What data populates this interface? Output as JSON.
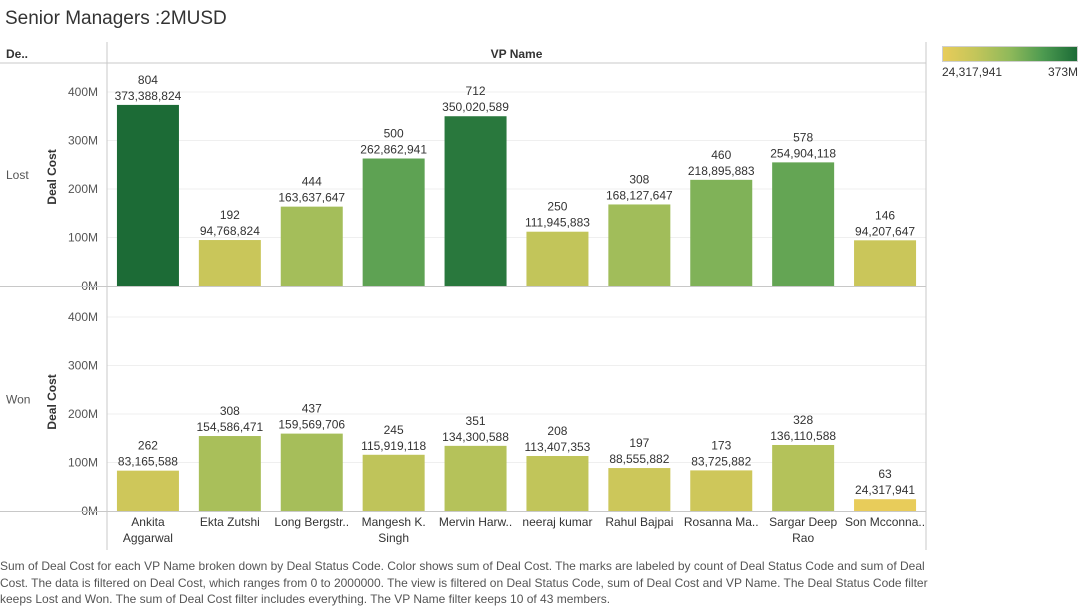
{
  "title": "Senior Managers :2MUSD",
  "header": {
    "row_dim_label": "De..",
    "column_title": "VP Name"
  },
  "legend": {
    "min_label": "24,317,941",
    "max_label": "373M",
    "color_low": "#e8cc5a",
    "color_high": "#1c6b36"
  },
  "caption": "Sum of Deal Cost for each VP Name broken down by Deal Status Code.  Color shows sum of Deal Cost.  The marks are labeled by count of Deal Status Code and sum of Deal Cost. The data is filtered on Deal Cost, which ranges from 0 to 2000000. The view is filtered on Deal Status Code, sum of Deal Cost and VP Name. The Deal Status Code filter keeps Lost and Won. The sum of Deal Cost filter includes everything. The VP Name filter keeps 10 of 43 members.",
  "chart_data": {
    "type": "bar",
    "title": "Senior Managers :2MUSD",
    "xlabel": "VP Name",
    "ylabel": "Deal Cost",
    "ylim": [
      0,
      450000000
    ],
    "yticks": [
      0,
      100000000,
      200000000,
      300000000,
      400000000
    ],
    "ytick_labels": [
      "0M",
      "100M",
      "200M",
      "300M",
      "400M"
    ],
    "categories": [
      [
        "Ankita",
        "Aggarwal"
      ],
      [
        "Ekta Zutshi"
      ],
      [
        "Long Bergstr.."
      ],
      [
        "Mangesh K.",
        "Singh"
      ],
      [
        "Mervin Harw.."
      ],
      [
        "neeraj kumar"
      ],
      [
        "Rahul Bajpai"
      ],
      [
        "Rosanna Ma.."
      ],
      [
        "Sargar Deep",
        "Rao"
      ],
      [
        "Son Mcconna.."
      ]
    ],
    "color_range": [
      24317941,
      373388824
    ],
    "grid": true,
    "series": [
      {
        "name": "Lost",
        "values": [
          373388824,
          94768824,
          163637647,
          262862941,
          350020589,
          111945883,
          168127647,
          218895883,
          254904118,
          94207647
        ],
        "counts": [
          804,
          192,
          444,
          500,
          712,
          250,
          308,
          460,
          578,
          146
        ],
        "value_labels": [
          "373,388,824",
          "94,768,824",
          "163,637,647",
          "262,862,941",
          "350,020,589",
          "111,945,883",
          "168,127,647",
          "218,895,883",
          "254,904,118",
          "94,207,647"
        ],
        "count_labels": [
          "804",
          "192",
          "444",
          "500",
          "712",
          "250",
          "308",
          "460",
          "578",
          "146"
        ]
      },
      {
        "name": "Won",
        "values": [
          83165588,
          154586471,
          159569706,
          115919118,
          134300588,
          113407353,
          88555882,
          83725882,
          136110588,
          24317941
        ],
        "counts": [
          262,
          308,
          437,
          245,
          351,
          208,
          197,
          173,
          328,
          63
        ],
        "value_labels": [
          "83,165,588",
          "154,586,471",
          "159,569,706",
          "115,919,118",
          "134,300,588",
          "113,407,353",
          "88,555,882",
          "83,725,882",
          "136,110,588",
          "24,317,941"
        ],
        "count_labels": [
          "262",
          "308",
          "437",
          "245",
          "351",
          "208",
          "197",
          "173",
          "328",
          "63"
        ]
      }
    ]
  }
}
